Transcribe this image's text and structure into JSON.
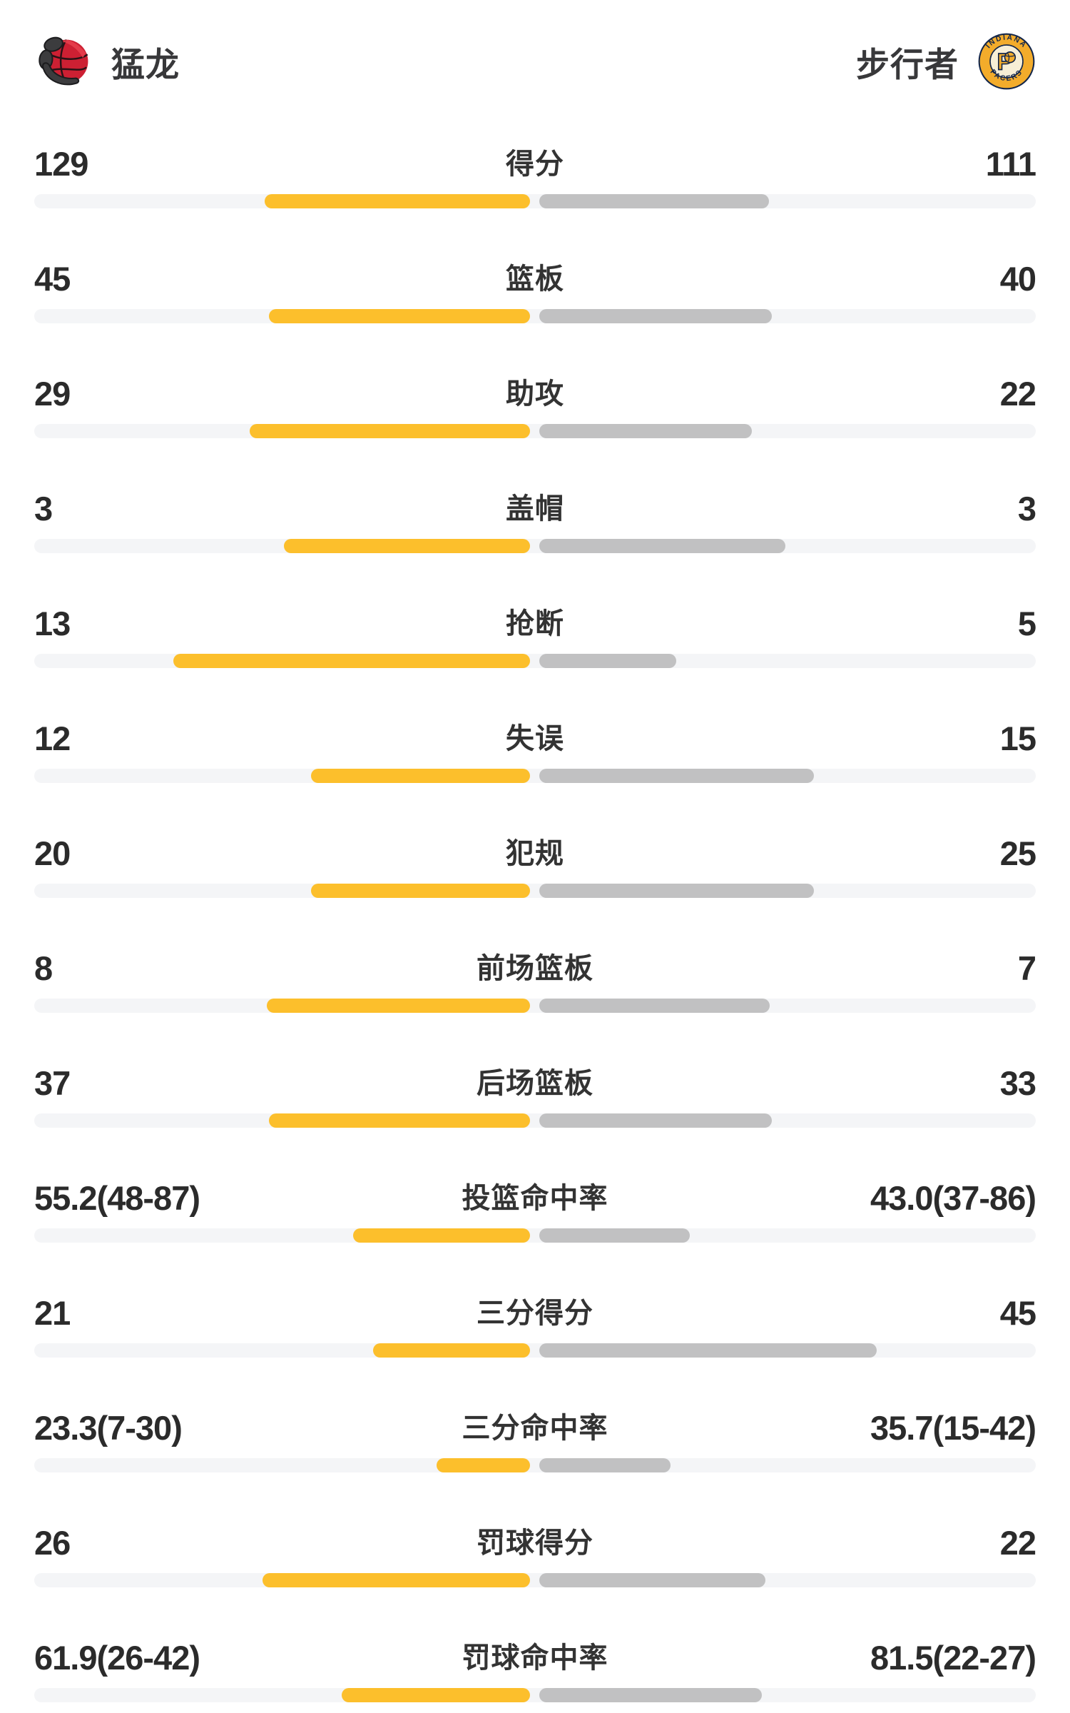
{
  "header": {
    "home": {
      "name": "猛龙",
      "logo_icon": "raptors-logo"
    },
    "away": {
      "name": "步行者",
      "logo_icon": "pacers-logo",
      "logo_text_top": "INDIANA",
      "logo_text_bottom": "PACERS",
      "logo_letter": "P"
    }
  },
  "colors": {
    "home_bar": "#fcbf2c",
    "away_bar": "#c1c1c2",
    "track": "#f4f5f7",
    "value_text": "#2b2b2b",
    "label_text": "#333333",
    "team_name_text": "#38383a",
    "raptors_red": "#cd2033",
    "pacers_navy": "#13264a",
    "pacers_gold": "#f3ac2b",
    "pacers_cream": "#f7efd6"
  },
  "rows": [
    {
      "label": "得分",
      "home": "129",
      "away": "111",
      "home_bar_pct": 26.5,
      "away_bar_pct": 22.9
    },
    {
      "label": "篮板",
      "home": "45",
      "away": "40",
      "home_bar_pct": 26.1,
      "away_bar_pct": 23.2
    },
    {
      "label": "助攻",
      "home": "29",
      "away": "22",
      "home_bar_pct": 28.0,
      "away_bar_pct": 21.2
    },
    {
      "label": "盖帽",
      "home": "3",
      "away": "3",
      "home_bar_pct": 24.6,
      "away_bar_pct": 24.6
    },
    {
      "label": "抢断",
      "home": "13",
      "away": "5",
      "home_bar_pct": 35.6,
      "away_bar_pct": 13.7
    },
    {
      "label": "失误",
      "home": "12",
      "away": "15",
      "home_bar_pct": 21.9,
      "away_bar_pct": 27.4
    },
    {
      "label": "犯规",
      "home": "20",
      "away": "25",
      "home_bar_pct": 21.9,
      "away_bar_pct": 27.4
    },
    {
      "label": "前场篮板",
      "home": "8",
      "away": "7",
      "home_bar_pct": 26.3,
      "away_bar_pct": 23.0
    },
    {
      "label": "后场篮板",
      "home": "37",
      "away": "33",
      "home_bar_pct": 26.1,
      "away_bar_pct": 23.2
    },
    {
      "label": "投篮命中率",
      "home": "55.2(48-87)",
      "away": "43.0(37-86)",
      "home_bar_pct": 17.7,
      "away_bar_pct": 15.0
    },
    {
      "label": "三分得分",
      "home": "21",
      "away": "45",
      "home_bar_pct": 15.7,
      "away_bar_pct": 33.7
    },
    {
      "label": "三分命中率",
      "home": "23.3(7-30)",
      "away": "35.7(15-42)",
      "home_bar_pct": 9.3,
      "away_bar_pct": 13.1
    },
    {
      "label": "罚球得分",
      "home": "26",
      "away": "22",
      "home_bar_pct": 26.7,
      "away_bar_pct": 22.6
    },
    {
      "label": "罚球命中率",
      "home": "61.9(26-42)",
      "away": "81.5(22-27)",
      "home_bar_pct": 18.8,
      "away_bar_pct": 22.2
    }
  ],
  "chart_data": {
    "type": "bar",
    "orientation": "horizontal-diverging-from-center",
    "grid": false,
    "legend_position": "top",
    "categories": [
      "得分",
      "篮板",
      "助攻",
      "盖帽",
      "抢断",
      "失误",
      "犯规",
      "前场篮板",
      "后场篮板",
      "投篮命中率",
      "三分得分",
      "三分命中率",
      "罚球得分",
      "罚球命中率"
    ],
    "series": [
      {
        "name": "猛龙",
        "color": "#fcbf2c",
        "values": [
          129,
          45,
          29,
          3,
          13,
          12,
          20,
          8,
          37,
          55.2,
          21,
          23.3,
          26,
          61.9
        ]
      },
      {
        "name": "步行者",
        "color": "#c1c1c2",
        "values": [
          111,
          40,
          22,
          3,
          5,
          15,
          25,
          7,
          33,
          43.0,
          45,
          35.7,
          22,
          81.5
        ]
      }
    ],
    "made_attempt_annotations": {
      "投篮命中率": {
        "猛龙": "48-87",
        "步行者": "37-86"
      },
      "三分命中率": {
        "猛龙": "7-30",
        "步行者": "15-42"
      },
      "罚球命中率": {
        "猛龙": "26-42",
        "步行者": "22-27"
      }
    }
  }
}
